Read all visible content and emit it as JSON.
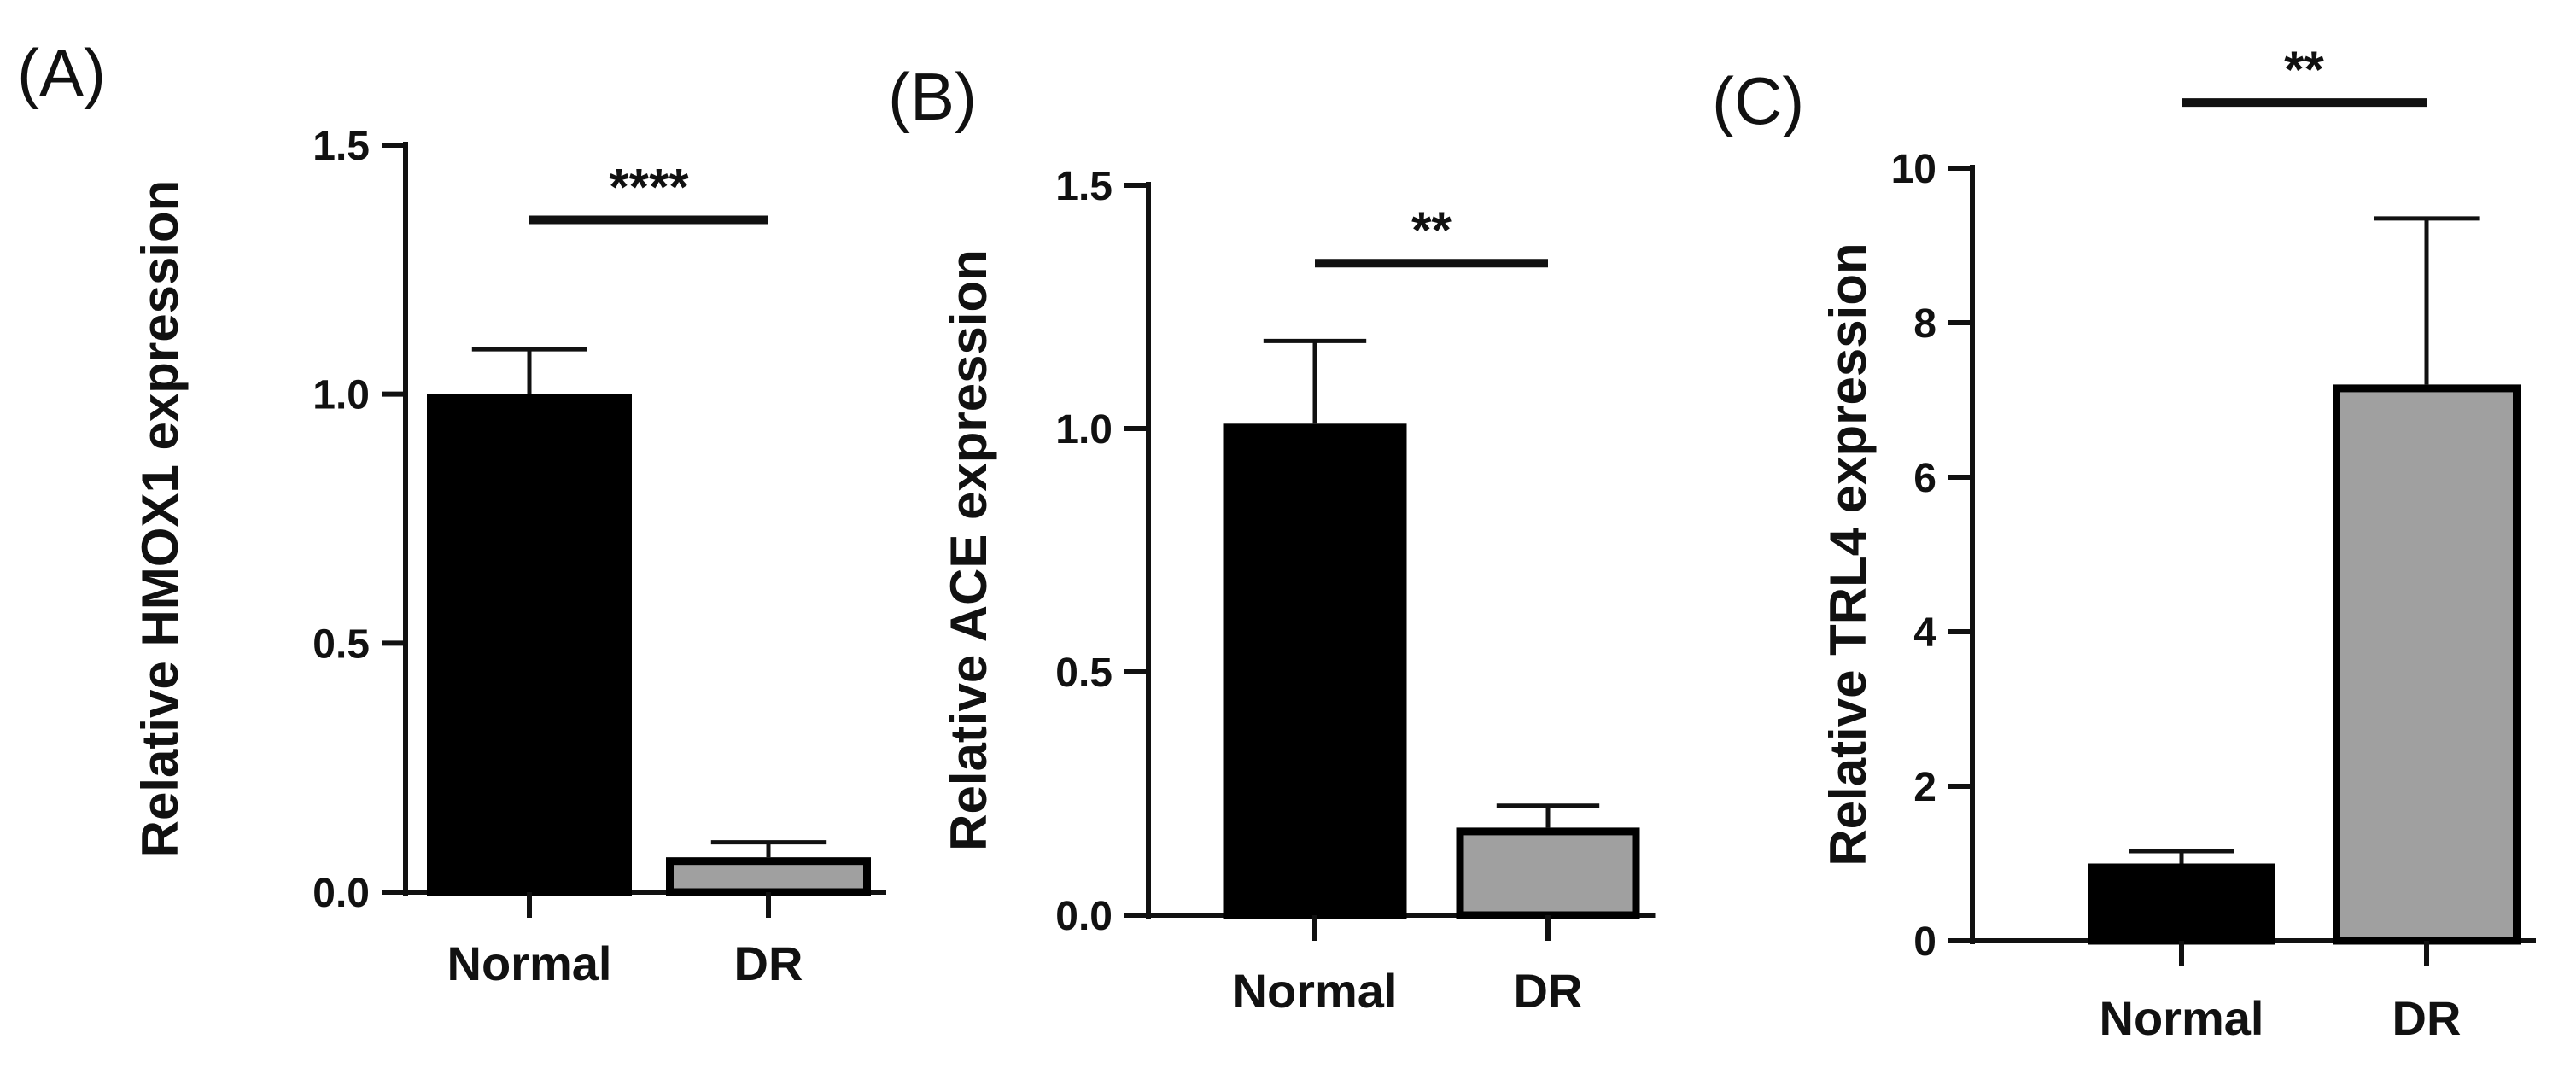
{
  "colors": {
    "normal": "#000000",
    "dr": "#a0a0a0",
    "axis": "#111111"
  },
  "chart_data": [
    {
      "type": "bar",
      "panel": "(A)",
      "ylabel": "Relative HMOX1 expression",
      "xlabel": "",
      "categories": [
        "Normal",
        "DR"
      ],
      "values": [
        1.0,
        0.07
      ],
      "errors": [
        0.09,
        0.03
      ],
      "ylim": [
        0,
        1.5
      ],
      "yticks": [
        0.0,
        0.5,
        1.0,
        1.5
      ],
      "ytick_labels": [
        "0.0",
        "0.5",
        "1.0",
        "1.5"
      ],
      "significance": "****",
      "significance_bar_y": 1.35
    },
    {
      "type": "bar",
      "panel": "(B)",
      "ylabel": "Relative ACE expression",
      "xlabel": "",
      "categories": [
        "Normal",
        "DR"
      ],
      "values": [
        1.01,
        0.18
      ],
      "errors": [
        0.17,
        0.045
      ],
      "ylim": [
        0,
        1.5
      ],
      "yticks": [
        0.0,
        0.5,
        1.0,
        1.5
      ],
      "ytick_labels": [
        "0.0",
        "0.5",
        "1.0",
        "1.5"
      ],
      "significance": "**",
      "significance_bar_y": 1.34
    },
    {
      "type": "bar",
      "panel": "(C)",
      "ylabel": "Relative TRL4 expression",
      "xlabel": "",
      "categories": [
        "Normal",
        "DR"
      ],
      "values": [
        1.0,
        7.2
      ],
      "errors": [
        0.16,
        2.15
      ],
      "ylim": [
        0,
        10
      ],
      "yticks": [
        0,
        2,
        4,
        6,
        8,
        10
      ],
      "ytick_labels": [
        "0",
        "2",
        "4",
        "6",
        "8",
        "10"
      ],
      "significance": "**",
      "significance_bar_y": 10.85
    }
  ]
}
